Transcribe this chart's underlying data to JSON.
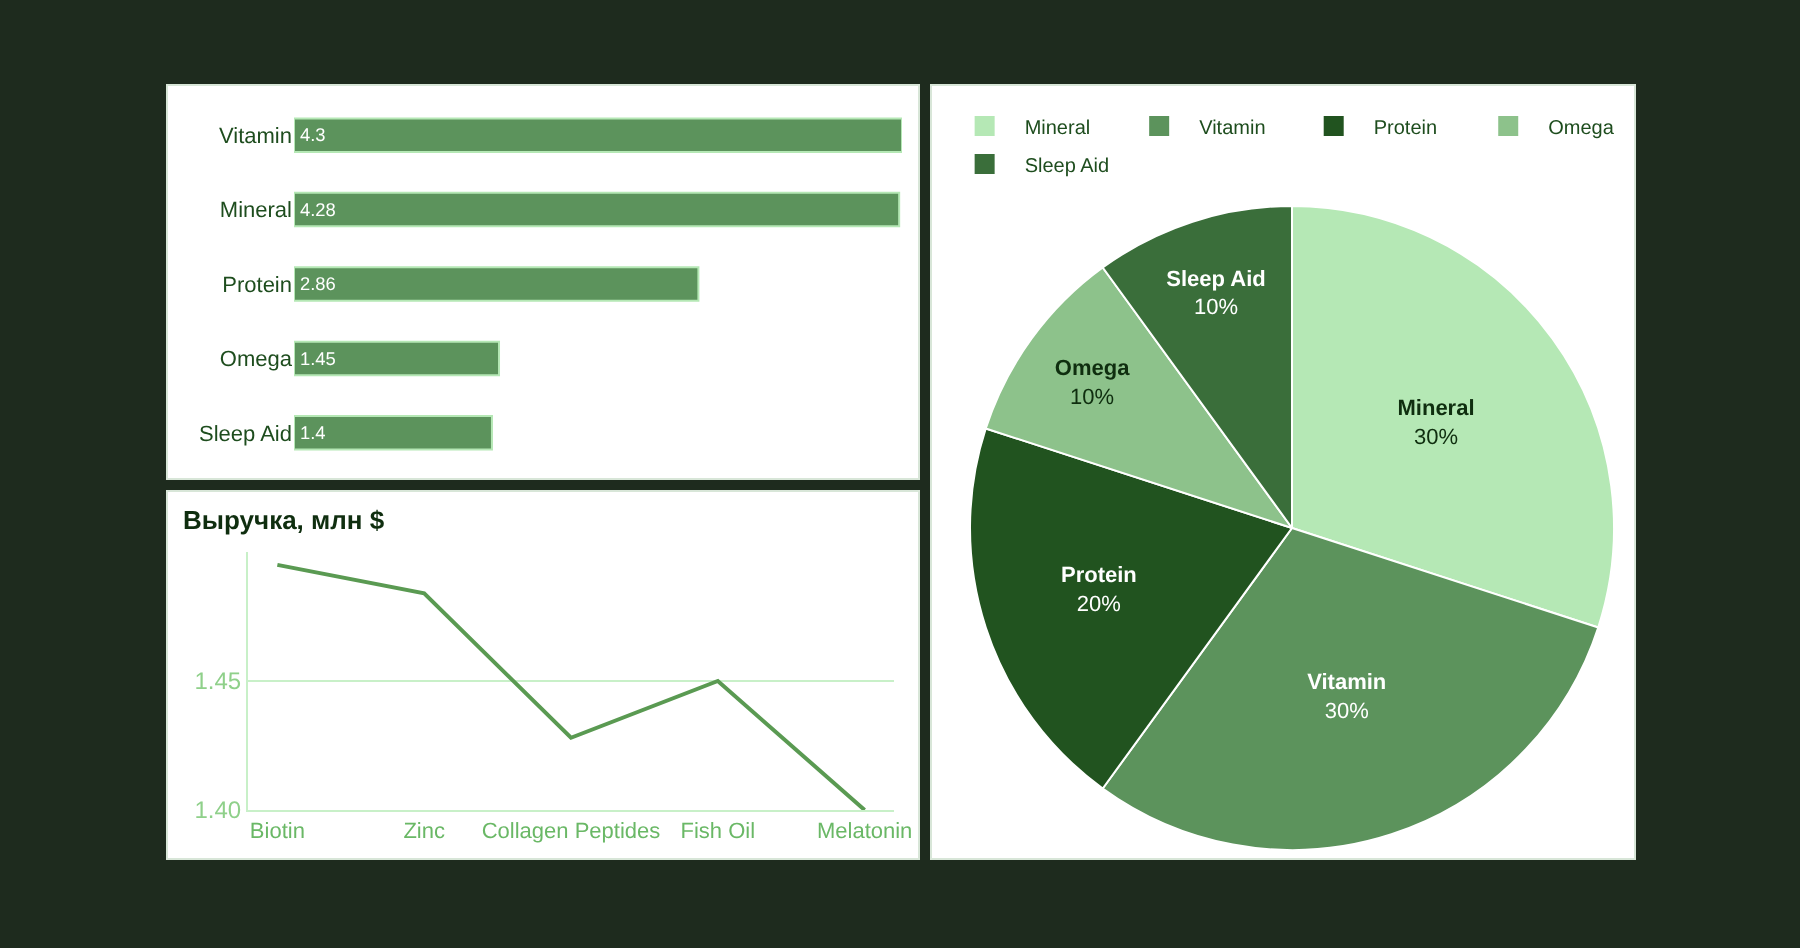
{
  "chart_data": [
    {
      "type": "bar",
      "orientation": "horizontal",
      "categories": [
        "Vitamin",
        "Mineral",
        "Protein",
        "Omega",
        "Sleep Aid"
      ],
      "values": [
        4.3,
        4.28,
        2.86,
        1.45,
        1.4
      ],
      "color": "#5c935c",
      "xlim": [
        0,
        4.3
      ],
      "data_labels": true,
      "tick_labels": "y",
      "grid": false,
      "legend": false
    },
    {
      "type": "line",
      "title": "Выручка, млн $",
      "categories": [
        "Biotin",
        "Zinc",
        "Collagen Peptides",
        "Fish Oil",
        "Melatonin"
      ],
      "values": [
        1.495,
        1.484,
        1.428,
        1.45,
        1.4
      ],
      "color": "#5a9a52",
      "ylim": [
        1.4,
        1.5
      ],
      "yticks": [
        {
          "value": 1.4,
          "label": "1.40"
        },
        {
          "value": 1.45,
          "label": "1.45"
        }
      ],
      "grid": "y",
      "marker": "none",
      "line_style": "solid",
      "legend": false
    },
    {
      "type": "pie",
      "categories": [
        "Mineral",
        "Vitamin",
        "Protein",
        "Omega",
        "Sleep Aid"
      ],
      "values": [
        30,
        30,
        20,
        10,
        10
      ],
      "value_labels": [
        "30%",
        "30%",
        "20%",
        "10%",
        "10%"
      ],
      "colors": [
        "#b5e8b5",
        "#5c935c",
        "#21531f",
        "#8dc28b",
        "#3a6e3a"
      ],
      "legend": "top"
    }
  ]
}
